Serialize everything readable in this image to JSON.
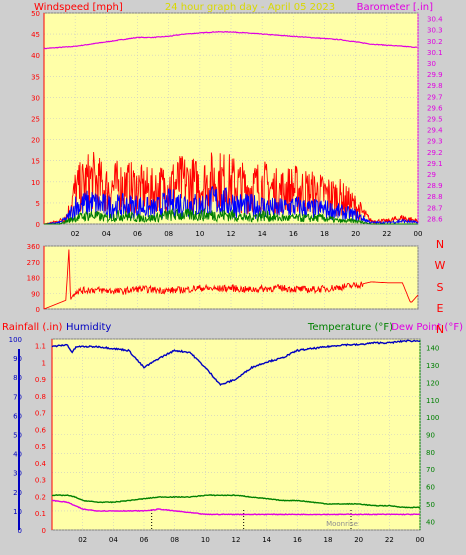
{
  "chart_data": [
    {
      "type": "line",
      "title": "24 hour graph day - April 05 2023",
      "ylabel": "Windspeed [mph]",
      "ylabel_right": "Barometer [.in]",
      "x_ticks": [
        "02",
        "04",
        "06",
        "08",
        "10",
        "12",
        "14",
        "16",
        "18",
        "20",
        "22",
        "00"
      ],
      "y_ticks_left": [
        "0",
        "5",
        "10",
        "15",
        "20",
        "25",
        "30",
        "35",
        "40",
        "45",
        "50"
      ],
      "y_ticks_right": [
        "28.6",
        "28.7",
        "28.8",
        "28.9",
        "29",
        "29.1",
        "29.2",
        "29.3",
        "29.4",
        "29.5",
        "29.6",
        "29.7",
        "29.8",
        "29.9",
        "30",
        "30.1",
        "30.2",
        "30.3",
        "30.4"
      ],
      "ylim": [
        0,
        50
      ],
      "ylim_right": [
        28.55,
        30.45
      ],
      "x_range": [
        0,
        24
      ],
      "grid": true,
      "series": [
        {
          "color": "#e000e0",
          "axis": "right",
          "x": [
            0,
            1,
            2,
            3,
            4,
            5,
            6,
            7,
            8,
            9,
            10,
            11,
            12,
            13,
            14,
            15,
            16,
            17,
            18,
            19,
            20,
            21,
            22,
            23,
            24
          ],
          "values": [
            30.13,
            30.14,
            30.15,
            30.17,
            30.19,
            30.21,
            30.23,
            30.23,
            30.24,
            30.26,
            30.27,
            30.28,
            30.28,
            30.27,
            30.26,
            30.25,
            30.24,
            30.23,
            30.22,
            30.21,
            30.19,
            30.17,
            30.16,
            30.15,
            30.14
          ]
        },
        {
          "color": "#ff0000",
          "x": [
            0,
            1,
            1.5,
            2,
            3,
            4,
            5,
            6,
            7,
            8,
            9,
            10,
            11,
            12,
            13,
            14,
            15,
            16,
            17,
            18,
            19,
            20,
            21,
            22,
            23,
            24
          ],
          "values": [
            0,
            1,
            3,
            11,
            15,
            12,
            13,
            12,
            11,
            13,
            14,
            13,
            15,
            14,
            12,
            13,
            11,
            12,
            11,
            10,
            9,
            6,
            1,
            1,
            2,
            1
          ]
        },
        {
          "color": "#0000ff",
          "x": [
            0,
            1,
            1.5,
            2,
            3,
            4,
            5,
            6,
            7,
            8,
            9,
            10,
            11,
            12,
            13,
            14,
            15,
            16,
            17,
            18,
            19,
            20,
            21,
            22,
            23,
            24
          ],
          "values": [
            0,
            0.5,
            2,
            6,
            7,
            6,
            6,
            6,
            5,
            7,
            7,
            6,
            8,
            7,
            6,
            6,
            5,
            6,
            5,
            5,
            4,
            3,
            0.5,
            0.5,
            1,
            0.5
          ]
        },
        {
          "color": "#008000",
          "x": [
            0,
            1,
            1.5,
            2,
            3,
            4,
            5,
            6,
            7,
            8,
            9,
            10,
            11,
            12,
            13,
            14,
            15,
            16,
            17,
            18,
            19,
            20,
            21,
            22,
            23,
            24
          ],
          "values": [
            0,
            0,
            1,
            2,
            3,
            2,
            3,
            2,
            2,
            3,
            3,
            3,
            3,
            3,
            2,
            3,
            2,
            2,
            2,
            2,
            1,
            1,
            0,
            0,
            0,
            0
          ]
        }
      ]
    },
    {
      "type": "line",
      "ylabels_right": [
        "N",
        "W",
        "S",
        "E",
        "N"
      ],
      "y_ticks_left": [
        "0",
        "90",
        "180",
        "270",
        "360"
      ],
      "ylim": [
        0,
        360
      ],
      "x_range": [
        0,
        24
      ],
      "grid": true,
      "series": [
        {
          "color": "#ff0000",
          "x": [
            0,
            1.4,
            1.6,
            1.7,
            1.8,
            2,
            3,
            4,
            5,
            6,
            7,
            8,
            9,
            10,
            11,
            12,
            13,
            14,
            15,
            16,
            17,
            18,
            19,
            20,
            21,
            22,
            23,
            23.5,
            23.6,
            24
          ],
          "values": [
            0,
            50,
            340,
            50,
            70,
            100,
            110,
            105,
            100,
            115,
            110,
            105,
            110,
            120,
            115,
            120,
            110,
            115,
            120,
            115,
            110,
            115,
            125,
            135,
            155,
            150,
            150,
            40,
            40,
            80
          ]
        }
      ]
    },
    {
      "type": "line",
      "ylabel": "Rainfall (.in)",
      "ylabel_2": "Humidity",
      "ylabel_right": "Temperature (°F)",
      "ylabel_right_2": "Dew Point (°F)",
      "annotation": "Moonrise",
      "x_ticks": [
        "02",
        "04",
        "06",
        "08",
        "10",
        "12",
        "14",
        "16",
        "18",
        "20",
        "22",
        "00"
      ],
      "y_ticks_humidity": [
        "0",
        "10",
        "20",
        "30",
        "40",
        "50",
        "60",
        "70",
        "80",
        "90",
        "100"
      ],
      "y_ticks_rain": [
        "0",
        "0.1",
        "0.2",
        "0.3",
        "0.4",
        "0.5",
        "0.6",
        "0.7",
        "0.8",
        "0.9",
        "1",
        "1.1"
      ],
      "y_ticks_right": [
        "40",
        "50",
        "60",
        "70",
        "80",
        "90",
        "100",
        "110",
        "120",
        "130",
        "140"
      ],
      "ylim": [
        0,
        100
      ],
      "ylim_right": [
        35,
        145
      ],
      "x_range": [
        0,
        24
      ],
      "grid": true,
      "series": [
        {
          "name": "Humidity",
          "color": "#0000c0",
          "axis": "humidity",
          "x": [
            0,
            1,
            1.3,
            1.6,
            2,
            3,
            4,
            5,
            6,
            7,
            8,
            9,
            10,
            11,
            12,
            13,
            14,
            15,
            16,
            17,
            18,
            19,
            20,
            21,
            22,
            23,
            24
          ],
          "values": [
            96,
            97,
            93,
            96,
            96,
            96,
            95,
            94,
            85,
            90,
            94,
            93,
            85,
            76,
            79,
            85,
            88,
            90,
            94,
            95,
            96,
            97,
            97,
            98,
            98,
            99,
            99
          ]
        },
        {
          "name": "Temperature",
          "color": "#008000",
          "axis": "right",
          "x": [
            0,
            1,
            1.5,
            2,
            3,
            4,
            5,
            6,
            7,
            8,
            9,
            10,
            11,
            12,
            13,
            14,
            15,
            16,
            17,
            18,
            19,
            20,
            21,
            22,
            23,
            24
          ],
          "values": [
            55,
            55,
            54,
            52,
            51,
            51,
            52,
            53,
            54,
            54,
            54,
            55,
            55,
            55,
            54,
            53,
            52,
            52,
            51,
            50,
            50,
            50,
            49,
            49,
            48,
            48
          ]
        },
        {
          "name": "Dew Point",
          "color": "#e000e0",
          "axis": "right",
          "x": [
            0,
            1,
            1.5,
            2,
            3,
            4,
            5,
            6,
            7,
            8,
            9,
            10,
            11,
            12,
            13,
            14,
            15,
            16,
            17,
            18,
            19,
            20,
            21,
            22,
            23,
            24
          ],
          "values": [
            52,
            51,
            49,
            47,
            46,
            46,
            46,
            46,
            47,
            46,
            45,
            44,
            44,
            44,
            44,
            44,
            44,
            44,
            44,
            44,
            44,
            44,
            44,
            44,
            44,
            44
          ]
        }
      ]
    }
  ]
}
